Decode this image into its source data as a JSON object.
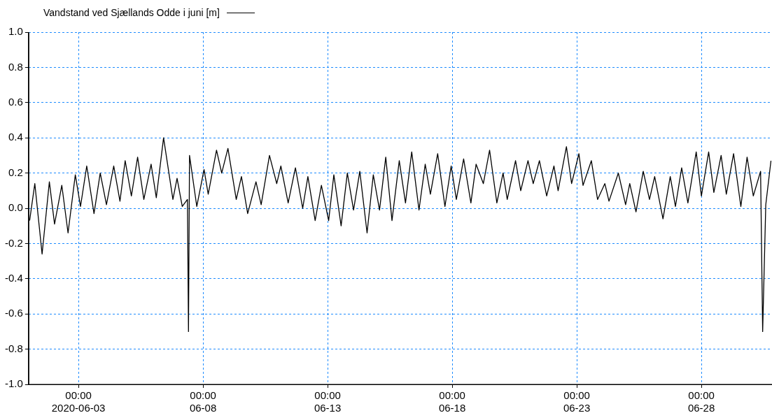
{
  "chart_data": {
    "type": "line",
    "xlim": [
      "2020-06-01T00:00",
      "2020-06-30T20:00"
    ],
    "xticks": [
      {
        "value": "2020-06-03T00:00",
        "label": "00:00\n2020-06-03"
      },
      {
        "value": "2020-06-08T00:00",
        "label": "00:00\n06-08"
      },
      {
        "value": "2020-06-13T00:00",
        "label": "00:00\n06-13"
      },
      {
        "value": "2020-06-18T00:00",
        "label": "00:00\n06-18"
      },
      {
        "value": "2020-06-23T00:00",
        "label": "00:00\n06-23"
      },
      {
        "value": "2020-06-28T00:00",
        "label": "00:00\n06-28"
      }
    ],
    "ylim": [
      -1.0,
      1.0
    ],
    "yticks": [
      {
        "value": -1,
        "label": "-1.0"
      },
      {
        "value": -0.8,
        "label": "-0.8"
      },
      {
        "value": -0.6,
        "label": "-0.6"
      },
      {
        "value": -0.4,
        "label": "-0.4"
      },
      {
        "value": -0.2,
        "label": "-0.2"
      },
      {
        "value": 0,
        "label": "0.0"
      },
      {
        "value": 0.2,
        "label": "0.2"
      },
      {
        "value": 0.4,
        "label": "0.4"
      },
      {
        "value": 0.6,
        "label": "0.6"
      },
      {
        "value": 0.8,
        "label": "0.8"
      },
      {
        "value": 1,
        "label": "1.0"
      }
    ],
    "grid": true,
    "legend": "top left",
    "marker": "none",
    "line_style": "solid",
    "series": [
      {
        "name": "Vandstand ved Sjællands Odde i juni [m]",
        "color": "#000000",
        "x": [
          "2020-06-01T01:00",
          "2020-06-01T06:00",
          "2020-06-01T13:00",
          "2020-06-01T20:00",
          "2020-06-02T01:00",
          "2020-06-02T08:00",
          "2020-06-02T14:00",
          "2020-06-02T21:00",
          "2020-06-03T02:00",
          "2020-06-03T08:00",
          "2020-06-03T15:00",
          "2020-06-03T21:00",
          "2020-06-04T03:00",
          "2020-06-04T10:00",
          "2020-06-04T16:00",
          "2020-06-04T21:00",
          "2020-06-05T03:00",
          "2020-06-05T09:00",
          "2020-06-05T15:00",
          "2020-06-05T22:00",
          "2020-06-06T03:00",
          "2020-06-06T10:00",
          "2020-06-06T19:00",
          "2020-06-06T23:00",
          "2020-06-07T04:00",
          "2020-06-07T09:00",
          "2020-06-07T10:00",
          "2020-06-07T11:00",
          "2020-06-07T18:00",
          "2020-06-08T01:00",
          "2020-06-08T05:00",
          "2020-06-08T13:00",
          "2020-06-08T18:00",
          "2020-06-09T00:00",
          "2020-06-09T08:00",
          "2020-06-09T13:00",
          "2020-06-09T19:00",
          "2020-06-10T03:00",
          "2020-06-10T08:00",
          "2020-06-10T16:00",
          "2020-06-10T23:00",
          "2020-06-11T03:00",
          "2020-06-11T10:00",
          "2020-06-11T17:00",
          "2020-06-12T00:00",
          "2020-06-12T05:00",
          "2020-06-12T12:00",
          "2020-06-12T18:00",
          "2020-06-13T01:00",
          "2020-06-13T06:00",
          "2020-06-13T13:00",
          "2020-06-13T19:00",
          "2020-06-14T01:00",
          "2020-06-14T07:00",
          "2020-06-14T14:00",
          "2020-06-14T20:00",
          "2020-06-15T02:00",
          "2020-06-15T08:00",
          "2020-06-15T14:00",
          "2020-06-15T21:00",
          "2020-06-16T03:00",
          "2020-06-16T09:00",
          "2020-06-16T16:00",
          "2020-06-16T22:00",
          "2020-06-17T03:00",
          "2020-06-17T10:00",
          "2020-06-17T17:00",
          "2020-06-17T23:00",
          "2020-06-18T04:00",
          "2020-06-18T11:00",
          "2020-06-18T18:00",
          "2020-06-18T23:00",
          "2020-06-19T06:00",
          "2020-06-19T12:00",
          "2020-06-19T19:00",
          "2020-06-20T01:00",
          "2020-06-20T05:00",
          "2020-06-20T13:00",
          "2020-06-20T18:00",
          "2020-06-21T01:00",
          "2020-06-21T06:00",
          "2020-06-21T12:00",
          "2020-06-21T19:00",
          "2020-06-22T02:00",
          "2020-06-22T06:00",
          "2020-06-22T14:00",
          "2020-06-22T19:00",
          "2020-06-23T02:00",
          "2020-06-23T06:00",
          "2020-06-23T14:00",
          "2020-06-23T20:00",
          "2020-06-24T03:00",
          "2020-06-24T07:00",
          "2020-06-24T16:00",
          "2020-06-24T23:00",
          "2020-06-25T03:00",
          "2020-06-25T09:00",
          "2020-06-25T16:00",
          "2020-06-25T22:00",
          "2020-06-26T03:00",
          "2020-06-26T11:00",
          "2020-06-26T18:00",
          "2020-06-26T23:00",
          "2020-06-27T05:00",
          "2020-06-27T11:00",
          "2020-06-27T19:00",
          "2020-06-28T00:00",
          "2020-06-28T07:00",
          "2020-06-28T12:00",
          "2020-06-28T19:00",
          "2020-06-29T00:00",
          "2020-06-29T07:00",
          "2020-06-29T14:00",
          "2020-06-29T20:00",
          "2020-06-30T02:00",
          "2020-06-30T09:00",
          "2020-06-30T11:00",
          "2020-06-30T14:00",
          "2020-06-30T19:00"
        ],
        "values": [
          -0.07,
          0.14,
          -0.26,
          0.15,
          -0.09,
          0.13,
          -0.14,
          0.19,
          0.01,
          0.24,
          -0.03,
          0.2,
          0.02,
          0.24,
          0.04,
          0.27,
          0.07,
          0.29,
          0.05,
          0.25,
          0.06,
          0.4,
          0.05,
          0.17,
          0.01,
          0.05,
          -0.7,
          0.3,
          0.01,
          0.22,
          0.08,
          0.33,
          0.2,
          0.34,
          0.05,
          0.18,
          -0.03,
          0.15,
          0.02,
          0.3,
          0.14,
          0.24,
          0.03,
          0.23,
          0.0,
          0.18,
          -0.07,
          0.13,
          -0.07,
          0.19,
          -0.1,
          0.2,
          -0.01,
          0.21,
          -0.14,
          0.19,
          -0.01,
          0.29,
          -0.07,
          0.27,
          0.03,
          0.32,
          -0.01,
          0.25,
          0.08,
          0.31,
          0.01,
          0.24,
          0.05,
          0.28,
          0.03,
          0.25,
          0.14,
          0.33,
          0.03,
          0.2,
          0.05,
          0.27,
          0.1,
          0.27,
          0.14,
          0.27,
          0.07,
          0.24,
          0.1,
          0.35,
          0.14,
          0.31,
          0.13,
          0.27,
          0.05,
          0.14,
          0.04,
          0.2,
          0.02,
          0.14,
          -0.02,
          0.21,
          0.05,
          0.18,
          -0.06,
          0.18,
          0.01,
          0.23,
          0.03,
          0.32,
          0.07,
          0.32,
          0.09,
          0.3,
          0.08,
          0.31,
          0.01,
          0.29,
          0.07,
          0.21,
          -0.7,
          0.02,
          0.27
        ]
      }
    ]
  }
}
